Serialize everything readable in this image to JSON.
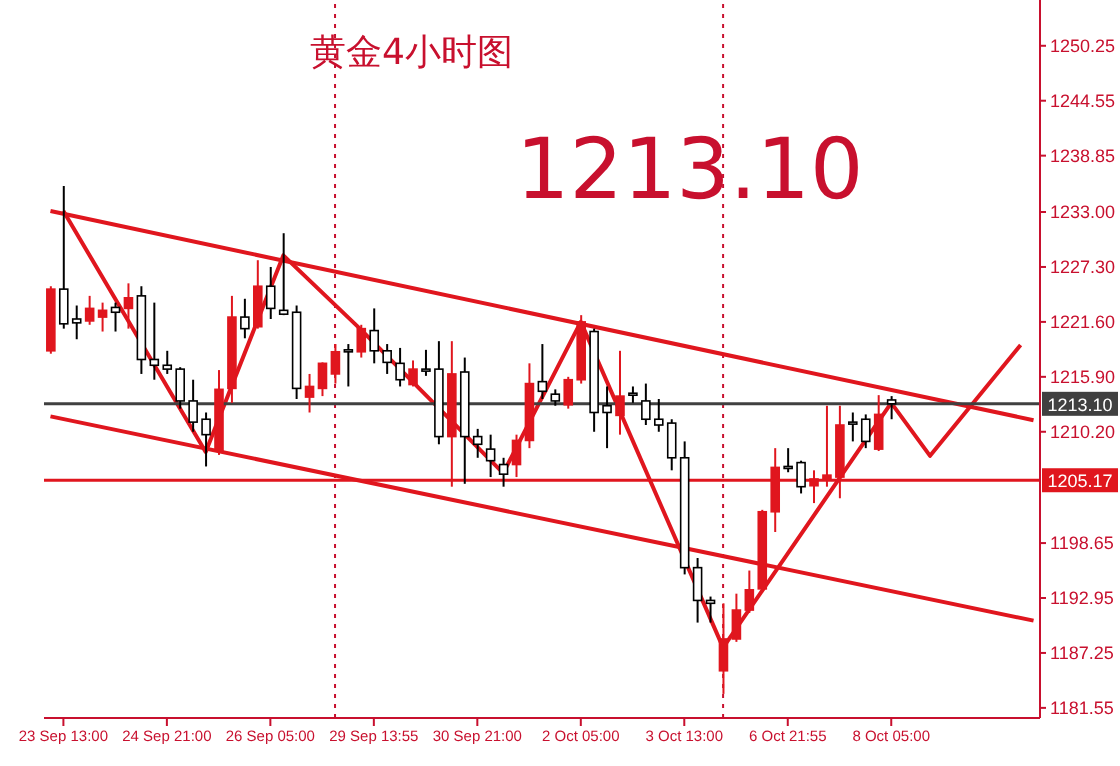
{
  "chart_data": {
    "type": "candlestick",
    "title": "黄金4小时图",
    "annotations": [
      "1213.10"
    ],
    "categories": [
      null,
      "23 Sep 13:00",
      null,
      null,
      null,
      null,
      null,
      null,
      null,
      "24 Sep 21:00",
      null,
      null,
      null,
      null,
      null,
      null,
      null,
      "26 Sep 05:00",
      null,
      null,
      null,
      null,
      null,
      null,
      null,
      "29 Sep 13:55",
      null,
      null,
      null,
      null,
      null,
      null,
      null,
      "30 Sep 21:00",
      null,
      null,
      null,
      null,
      null,
      null,
      null,
      "2 Oct 05:00",
      null,
      null,
      null,
      null,
      null,
      null,
      null,
      "3 Oct 13:00",
      null,
      null,
      null,
      null,
      null,
      null,
      null,
      "6 Oct 21:55",
      null,
      null,
      null,
      null,
      null,
      null,
      null,
      "8 Oct 05:00",
      null,
      null,
      null,
      null,
      null,
      null,
      null,
      null,
      null,
      null,
      null
    ],
    "ohlc": [
      [
        1218.6,
        1225.3,
        1218.3,
        1225.0
      ],
      [
        1225.0,
        1235.7,
        1220.9,
        1221.4
      ],
      [
        1221.9,
        1223.3,
        1219.8,
        1221.5
      ],
      [
        1221.7,
        1224.3,
        1221.3,
        1223.0
      ],
      [
        1222.1,
        1223.6,
        1220.6,
        1222.8
      ],
      [
        1223.1,
        1223.6,
        1220.6,
        1222.6
      ],
      [
        1223.0,
        1225.6,
        1220.9,
        1224.1
      ],
      [
        1224.3,
        1225.3,
        1216.2,
        1217.7
      ],
      [
        1217.7,
        1223.6,
        1215.6,
        1217.1
      ],
      [
        1217.1,
        1218.6,
        1216.2,
        1216.7
      ],
      [
        1216.7,
        1216.9,
        1212.6,
        1213.4
      ],
      [
        1213.4,
        1215.6,
        1210.2,
        1211.2
      ],
      [
        1211.5,
        1212.2,
        1206.6,
        1209.9
      ],
      [
        1208.2,
        1216.6,
        1207.8,
        1214.6
      ],
      [
        1214.7,
        1224.3,
        1213.2,
        1222.1
      ],
      [
        1222.1,
        1224.0,
        1219.9,
        1220.9
      ],
      [
        1221.1,
        1228.0,
        1220.9,
        1225.3
      ],
      [
        1225.3,
        1227.3,
        1221.9,
        1223.0
      ],
      [
        1222.8,
        1230.8,
        1222.3,
        1222.4
      ],
      [
        1222.6,
        1223.3,
        1213.6,
        1214.7
      ],
      [
        1213.8,
        1216.2,
        1212.2,
        1214.9
      ],
      [
        1214.7,
        1217.4,
        1213.9,
        1217.3
      ],
      [
        1216.2,
        1219.3,
        1215.2,
        1218.5
      ],
      [
        1218.7,
        1219.3,
        1214.9,
        1218.5
      ],
      [
        1218.5,
        1221.3,
        1217.9,
        1220.9
      ],
      [
        1220.7,
        1223.0,
        1217.3,
        1218.6
      ],
      [
        1218.6,
        1219.3,
        1216.2,
        1217.4
      ],
      [
        1217.3,
        1218.9,
        1214.9,
        1215.6
      ],
      [
        1215.1,
        1217.6,
        1214.9,
        1216.7
      ],
      [
        1216.7,
        1218.7,
        1216.0,
        1216.6
      ],
      [
        1216.7,
        1219.6,
        1208.9,
        1209.7
      ],
      [
        1209.7,
        1219.6,
        1204.5,
        1216.2
      ],
      [
        1216.4,
        1217.9,
        1204.8,
        1209.7
      ],
      [
        1209.7,
        1210.5,
        1207.5,
        1208.9
      ],
      [
        1208.4,
        1209.9,
        1205.5,
        1207.2
      ],
      [
        1206.8,
        1207.5,
        1204.5,
        1205.8
      ],
      [
        1206.8,
        1209.9,
        1205.5,
        1209.3
      ],
      [
        1209.3,
        1217.3,
        1208.5,
        1215.2
      ],
      [
        1215.4,
        1219.3,
        1213.6,
        1214.4
      ],
      [
        1214.1,
        1214.6,
        1212.9,
        1213.4
      ],
      [
        1213.0,
        1215.9,
        1212.6,
        1215.6
      ],
      [
        1215.6,
        1222.3,
        1215.2,
        1221.6
      ],
      [
        1220.6,
        1220.9,
        1210.2,
        1212.2
      ],
      [
        1212.9,
        1214.9,
        1208.5,
        1212.2
      ],
      [
        1211.9,
        1218.6,
        1209.9,
        1213.9
      ],
      [
        1214.2,
        1214.9,
        1213.2,
        1214.1
      ],
      [
        1213.4,
        1215.2,
        1210.9,
        1211.5
      ],
      [
        1211.5,
        1213.6,
        1210.2,
        1210.9
      ],
      [
        1211.1,
        1211.5,
        1206.2,
        1207.5
      ],
      [
        1207.5,
        1209.2,
        1195.4,
        1196.1
      ],
      [
        1196.1,
        1197.1,
        1190.4,
        1192.7
      ],
      [
        1192.7,
        1193.1,
        1190.4,
        1192.4
      ],
      [
        1185.4,
        1192.4,
        1183.0,
        1188.7
      ],
      [
        1188.7,
        1193.4,
        1188.4,
        1191.7
      ],
      [
        1191.7,
        1195.8,
        1191.4,
        1193.8
      ],
      [
        1193.9,
        1202.1,
        1193.8,
        1201.9
      ],
      [
        1201.9,
        1208.5,
        1199.8,
        1206.5
      ],
      [
        1206.6,
        1208.5,
        1206.0,
        1206.4
      ],
      [
        1207.0,
        1207.2,
        1203.8,
        1204.5
      ],
      [
        1204.6,
        1206.2,
        1202.8,
        1205.3
      ],
      [
        1205.2,
        1212.9,
        1204.5,
        1205.7
      ],
      [
        1205.5,
        1212.9,
        1203.3,
        1210.9
      ],
      [
        1211.2,
        1212.2,
        1209.2,
        1211.1
      ],
      [
        1211.5,
        1212.0,
        1208.5,
        1209.2
      ],
      [
        1208.4,
        1214.0,
        1208.2,
        1212.0
      ],
      [
        1213.5,
        1213.9,
        1211.5,
        1213.1
      ],
      null,
      null,
      null,
      null,
      null,
      null,
      null,
      null,
      null,
      null,
      null
    ],
    "colors": [
      "#e0161e",
      "#ffffff",
      "#ffffff",
      "#e0161e",
      "#e0161e",
      "#ffffff",
      "#e0161e",
      "#ffffff",
      "#ffffff",
      "#ffffff",
      "#ffffff",
      "#ffffff",
      "#ffffff",
      "#e0161e",
      "#e0161e",
      "#ffffff",
      "#e0161e",
      "#ffffff",
      "#ffffff",
      "#ffffff",
      "#e0161e",
      "#e0161e",
      "#e0161e",
      "#ffffff",
      "#e0161e",
      "#ffffff",
      "#ffffff",
      "#ffffff",
      "#e0161e",
      "#ffffff",
      "#ffffff",
      "#e0161e",
      "#ffffff",
      "#ffffff",
      "#ffffff",
      "#ffffff",
      "#e0161e",
      "#e0161e",
      "#ffffff",
      "#ffffff",
      "#e0161e",
      "#e0161e",
      "#ffffff",
      "#ffffff",
      "#e0161e",
      "#ffffff",
      "#ffffff",
      "#ffffff",
      "#ffffff",
      "#ffffff",
      "#ffffff",
      "#ffffff",
      "#e0161e",
      "#e0161e",
      "#e0161e",
      "#e0161e",
      "#e0161e",
      "#ffffff",
      "#ffffff",
      "#e0161e",
      "#e0161e",
      "#e0161e",
      "#ffffff",
      "#ffffff",
      "#e0161e",
      "#ffffff",
      null,
      null,
      null,
      null,
      null,
      null,
      null,
      null,
      null,
      null,
      null
    ],
    "series": [
      {
        "type": "line",
        "color": "#e0161e",
        "values": [
          1233.1,
          null,
          null,
          null,
          null,
          null,
          null,
          null,
          null,
          null,
          null,
          null,
          null,
          null,
          null,
          null,
          null,
          null,
          null,
          null,
          null,
          null,
          null,
          null,
          null,
          null,
          null,
          null,
          null,
          null,
          null,
          null,
          null,
          null,
          null,
          null,
          null,
          null,
          null,
          null,
          null,
          null,
          null,
          null,
          null,
          null,
          null,
          null,
          null,
          null,
          null,
          null,
          null,
          null,
          null,
          null,
          null,
          null,
          null,
          null,
          null,
          null,
          null,
          null,
          null,
          null,
          null,
          null,
          null,
          null,
          null,
          null,
          null,
          null,
          null,
          null,
          1211.4
        ]
      },
      {
        "type": "line",
        "color": "#e0161e",
        "values": [
          1211.8,
          null,
          null,
          null,
          null,
          null,
          null,
          null,
          null,
          null,
          null,
          null,
          null,
          null,
          null,
          null,
          null,
          null,
          null,
          null,
          null,
          null,
          null,
          null,
          null,
          null,
          null,
          null,
          null,
          null,
          null,
          null,
          null,
          null,
          null,
          null,
          null,
          null,
          null,
          null,
          null,
          null,
          null,
          null,
          null,
          null,
          null,
          null,
          null,
          null,
          null,
          null,
          null,
          null,
          null,
          null,
          null,
          null,
          null,
          null,
          null,
          null,
          null,
          null,
          null,
          null,
          null,
          null,
          null,
          null,
          null,
          null,
          null,
          null,
          null,
          null,
          1190.6
        ]
      },
      {
        "type": "line",
        "color": "#e0161e",
        "values": [
          null,
          1233.1,
          null,
          null,
          null,
          null,
          null,
          null,
          null,
          null,
          null,
          null,
          1208.1,
          null,
          null,
          null,
          null,
          null,
          1228.5,
          null,
          null,
          null,
          null,
          null,
          1220.8,
          null,
          null,
          null,
          null,
          null,
          null,
          null,
          null,
          null,
          null,
          1205.9,
          null,
          null,
          null,
          null,
          null,
          1221.6,
          null,
          null,
          null,
          null,
          null,
          null,
          null,
          null,
          null,
          null,
          1187.8,
          null,
          null,
          null,
          null,
          null,
          null,
          null,
          null,
          null,
          null,
          null,
          null,
          1213.2,
          null,
          null,
          null,
          null,
          null,
          null,
          null,
          null,
          null,
          null,
          null
        ]
      },
      {
        "type": "line",
        "color": "#e0161e",
        "values": [
          null,
          null,
          null,
          null,
          null,
          null,
          null,
          null,
          null,
          null,
          null,
          null,
          null,
          null,
          null,
          null,
          null,
          null,
          null,
          null,
          null,
          null,
          null,
          null,
          null,
          null,
          null,
          null,
          null,
          null,
          null,
          null,
          null,
          null,
          null,
          null,
          null,
          null,
          null,
          null,
          null,
          null,
          null,
          null,
          null,
          null,
          null,
          null,
          null,
          null,
          null,
          null,
          null,
          null,
          null,
          null,
          null,
          null,
          null,
          null,
          null,
          null,
          null,
          null,
          null,
          1213.2,
          null,
          null,
          1207.7,
          null,
          null,
          null,
          null,
          null,
          null,
          1219.2,
          null
        ]
      }
    ],
    "ylim": [
      1180.5,
      1255
    ],
    "yticks": [
      {
        "value": 1181.55,
        "label": "1181.55"
      },
      {
        "value": 1187.25,
        "label": "1187.25"
      },
      {
        "value": 1192.95,
        "label": "1192.95"
      },
      {
        "value": 1198.65,
        "label": "1198.65"
      },
      {
        "value": 1210.2,
        "label": "1210.20"
      },
      {
        "value": 1215.9,
        "label": "1215.90"
      },
      {
        "value": 1221.6,
        "label": "1221.60"
      },
      {
        "value": 1227.3,
        "label": "1227.30"
      },
      {
        "value": 1233,
        "label": "1233.00"
      },
      {
        "value": 1238.85,
        "label": "1238.85"
      },
      {
        "value": 1244.55,
        "label": "1244.55"
      },
      {
        "value": 1250.25,
        "label": "1250.25"
      }
    ],
    "ref_lines": [
      {
        "axis": "y",
        "value": 1213.1,
        "label": "1213.10",
        "color": "#404040"
      },
      {
        "axis": "y",
        "value": 1205.17,
        "label": "1205.17",
        "color": "#e0161e"
      }
    ],
    "tick_labels": "xy"
  }
}
